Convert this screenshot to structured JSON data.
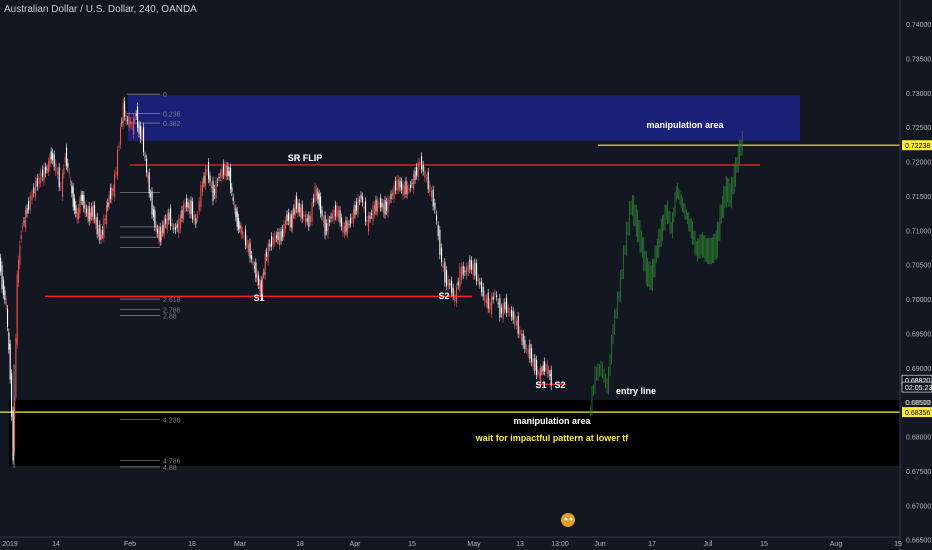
{
  "header": {
    "symbol_title": "Australian Dollar / U.S. Dollar, 240, OANDA"
  },
  "colors": {
    "background": "#131722",
    "up_candle": "#ef5350",
    "down_candle": "#ffffff",
    "projection": "#2e7d32",
    "blue_zone": "#1a237e",
    "yellow_line": "#ffeb3b",
    "red_line": "#ff1f1f",
    "axis_text": "#b2b5be"
  },
  "chart_data": {
    "type": "line",
    "title": "Australian Dollar / U.S. Dollar, 240, OANDA",
    "ylim": [
      0.6635,
      0.7435
    ],
    "y_ticks": [
      "0.74000",
      "0.73500",
      "0.73000",
      "0.72500",
      "0.72000",
      "0.71500",
      "0.71000",
      "0.70500",
      "0.70000",
      "0.69500",
      "0.69000",
      "0.68500",
      "0.68000",
      "0.67500",
      "0.67000",
      "0.66500"
    ],
    "x_ticks": [
      "2019",
      "14",
      "Feb",
      "18",
      "Mar",
      "18",
      "Apr",
      "15",
      "May",
      "13",
      "13:00",
      "Jun",
      "17",
      "Jul",
      "15",
      "Aug",
      "19"
    ],
    "price_labels": [
      {
        "text": "0.72238",
        "style": "yellow"
      },
      {
        "text": "0.68820",
        "style": "white"
      },
      {
        "text": "02:05:23",
        "style": "white"
      },
      {
        "text": "0.68500",
        "style": "plain"
      },
      {
        "text": "0.68356",
        "style": "yellow"
      }
    ],
    "series": [
      {
        "name": "AUDUSD",
        "kind": "candles",
        "points": [
          [
            0,
            0.706
          ],
          [
            3,
            0.702
          ],
          [
            7,
            0.699
          ],
          [
            11,
            0.689
          ],
          [
            14,
            0.677
          ],
          [
            18,
            0.703
          ],
          [
            22,
            0.71
          ],
          [
            28,
            0.713
          ],
          [
            35,
            0.716
          ],
          [
            42,
            0.718
          ],
          [
            48,
            0.719
          ],
          [
            52,
            0.721
          ],
          [
            57,
            0.719
          ],
          [
            62,
            0.716
          ],
          [
            66,
            0.721
          ],
          [
            70,
            0.718
          ],
          [
            74,
            0.714
          ],
          [
            78,
            0.712
          ],
          [
            82,
            0.715
          ],
          [
            86,
            0.713
          ],
          [
            90,
            0.712
          ],
          [
            94,
            0.713
          ],
          [
            98,
            0.71
          ],
          [
            102,
            0.709
          ],
          [
            106,
            0.712
          ],
          [
            110,
            0.715
          ],
          [
            114,
            0.716
          ],
          [
            117,
            0.719
          ],
          [
            120,
            0.723
          ],
          [
            124,
            0.728
          ],
          [
            127,
            0.726
          ],
          [
            130,
            0.726
          ],
          [
            133,
            0.725
          ],
          [
            137,
            0.727
          ],
          [
            140,
            0.724
          ],
          [
            143,
            0.724
          ],
          [
            146,
            0.72
          ],
          [
            150,
            0.716
          ],
          [
            153,
            0.713
          ],
          [
            157,
            0.71
          ],
          [
            161,
            0.709
          ],
          [
            165,
            0.711
          ],
          [
            170,
            0.712
          ],
          [
            175,
            0.71
          ],
          [
            180,
            0.711
          ],
          [
            186,
            0.714
          ],
          [
            192,
            0.713
          ],
          [
            197,
            0.711
          ],
          [
            202,
            0.716
          ],
          [
            208,
            0.719
          ],
          [
            214,
            0.715
          ],
          [
            220,
            0.718
          ],
          [
            226,
            0.719
          ],
          [
            230,
            0.718
          ],
          [
            234,
            0.714
          ],
          [
            238,
            0.711
          ],
          [
            242,
            0.71
          ],
          [
            248,
            0.708
          ],
          [
            254,
            0.705
          ],
          [
            258,
            0.703
          ],
          [
            262,
            0.701
          ],
          [
            266,
            0.706
          ],
          [
            271,
            0.708
          ],
          [
            276,
            0.709
          ],
          [
            282,
            0.709
          ],
          [
            288,
            0.712
          ],
          [
            292,
            0.711
          ],
          [
            296,
            0.714
          ],
          [
            300,
            0.713
          ],
          [
            305,
            0.712
          ],
          [
            310,
            0.711
          ],
          [
            316,
            0.716
          ],
          [
            320,
            0.714
          ],
          [
            326,
            0.71
          ],
          [
            332,
            0.712
          ],
          [
            338,
            0.713
          ],
          [
            344,
            0.71
          ],
          [
            350,
            0.711
          ],
          [
            356,
            0.713
          ],
          [
            362,
            0.715
          ],
          [
            368,
            0.711
          ],
          [
            374,
            0.713
          ],
          [
            380,
            0.714
          ],
          [
            386,
            0.713
          ],
          [
            392,
            0.715
          ],
          [
            398,
            0.717
          ],
          [
            404,
            0.716
          ],
          [
            410,
            0.716
          ],
          [
            416,
            0.718
          ],
          [
            421,
            0.72
          ],
          [
            426,
            0.718
          ],
          [
            431,
            0.716
          ],
          [
            436,
            0.713
          ],
          [
            441,
            0.707
          ],
          [
            446,
            0.703
          ],
          [
            451,
            0.702
          ],
          [
            456,
            0.7
          ],
          [
            461,
            0.704
          ],
          [
            466,
            0.704
          ],
          [
            471,
            0.705
          ],
          [
            476,
            0.704
          ],
          [
            481,
            0.702
          ],
          [
            486,
            0.7
          ],
          [
            491,
            0.699
          ],
          [
            496,
            0.701
          ],
          [
            501,
            0.698
          ],
          [
            506,
            0.699
          ],
          [
            511,
            0.698
          ],
          [
            516,
            0.697
          ],
          [
            521,
            0.695
          ],
          [
            526,
            0.693
          ],
          [
            531,
            0.692
          ],
          [
            536,
            0.69
          ],
          [
            540,
            0.689
          ],
          [
            544,
            0.69
          ],
          [
            548,
            0.69
          ],
          [
            552,
            0.688
          ]
        ]
      },
      {
        "name": "Projection",
        "kind": "projection",
        "points": [
          [
            590,
            0.683
          ],
          [
            596,
            0.689
          ],
          [
            602,
            0.69
          ],
          [
            608,
            0.687
          ],
          [
            614,
            0.696
          ],
          [
            620,
            0.701
          ],
          [
            626,
            0.708
          ],
          [
            632,
            0.714
          ],
          [
            637,
            0.711
          ],
          [
            642,
            0.708
          ],
          [
            647,
            0.704
          ],
          [
            652,
            0.703
          ],
          [
            657,
            0.707
          ],
          [
            662,
            0.71
          ],
          [
            667,
            0.713
          ],
          [
            672,
            0.71
          ],
          [
            677,
            0.716
          ],
          [
            682,
            0.714
          ],
          [
            687,
            0.712
          ],
          [
            692,
            0.71
          ],
          [
            697,
            0.707
          ],
          [
            702,
            0.708
          ],
          [
            707,
            0.707
          ],
          [
            712,
            0.707
          ],
          [
            717,
            0.708
          ],
          [
            722,
            0.713
          ],
          [
            727,
            0.716
          ],
          [
            731,
            0.715
          ],
          [
            735,
            0.718
          ],
          [
            739,
            0.721
          ],
          [
            743,
            0.723
          ]
        ]
      }
    ],
    "fib_labels_top": [
      "0",
      "0.236",
      "0.382"
    ],
    "fib_labels_bottom": [
      "2.618",
      "2.786",
      "2.88",
      "4.236",
      "4.786",
      "4.88"
    ],
    "annotations": [
      {
        "id": "sr_flip",
        "text": "SR FLIP"
      },
      {
        "id": "top_zone",
        "text": "manipulation area"
      },
      {
        "id": "bottom_zone_1",
        "text": "manipulation area"
      },
      {
        "id": "bottom_zone_2",
        "text": "wait for impactful pattern at lower tf"
      },
      {
        "id": "entry",
        "text": "entry line"
      },
      {
        "id": "s1a",
        "text": "S1"
      },
      {
        "id": "s2a",
        "text": "S2"
      },
      {
        "id": "s1b",
        "text": "S1"
      },
      {
        "id": "s2b",
        "text": "S2"
      }
    ],
    "grid": false
  }
}
